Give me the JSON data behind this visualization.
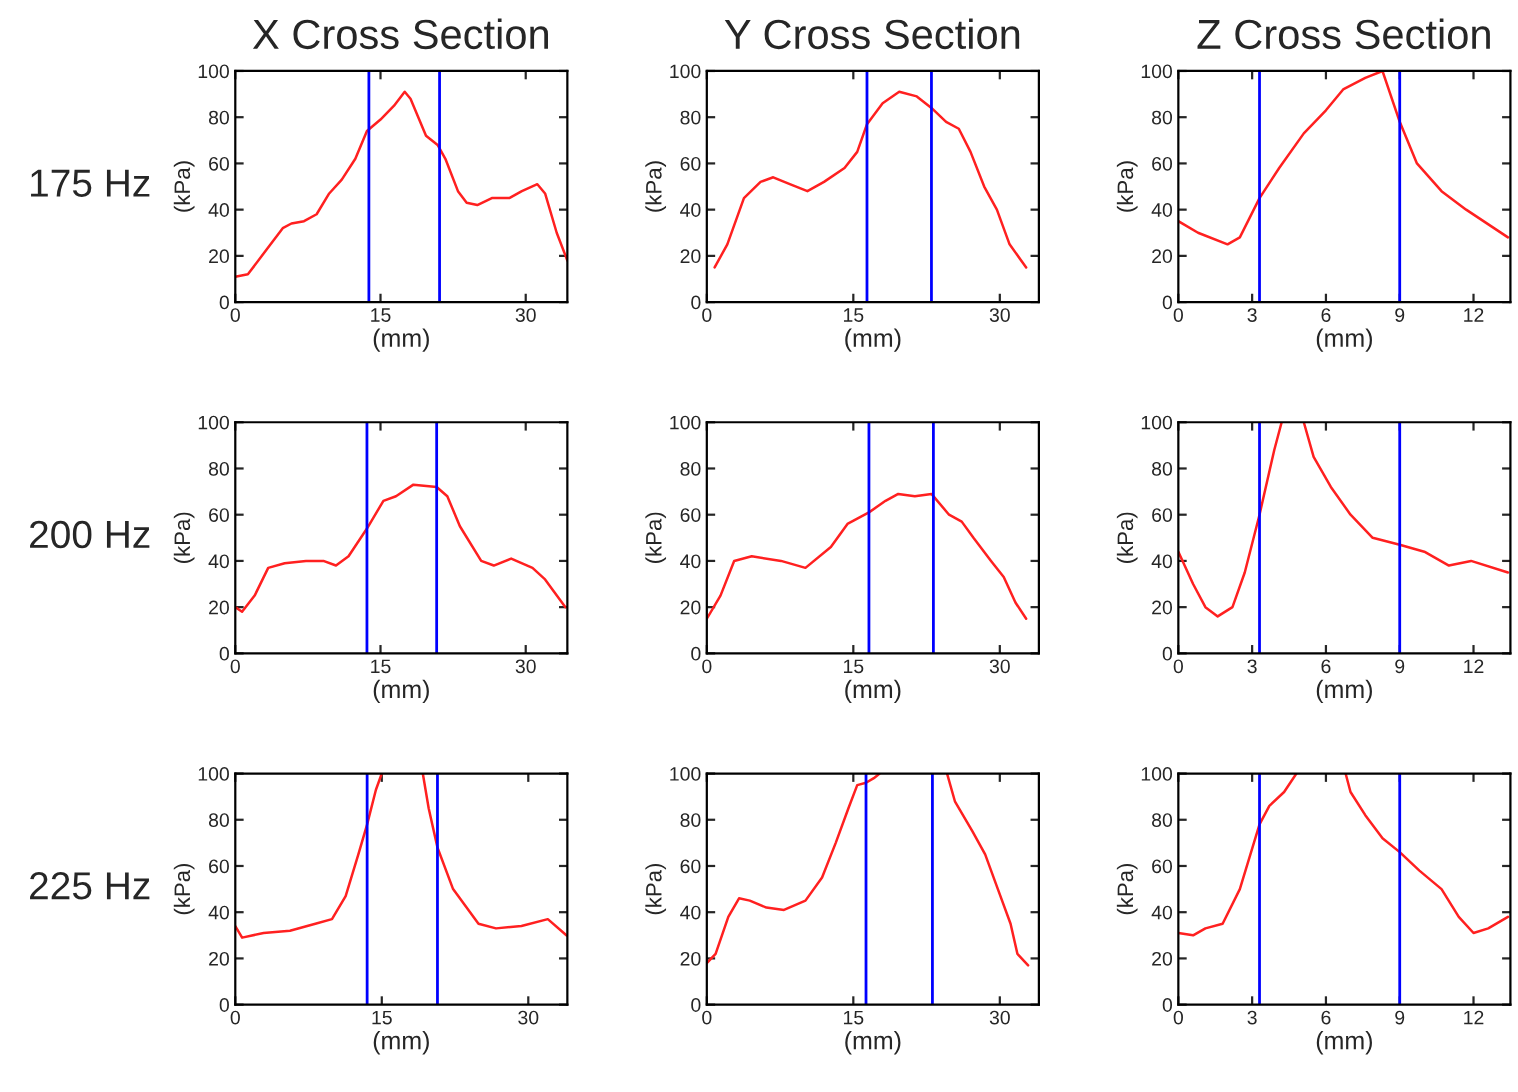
{
  "chart_data": [
    {
      "type": "line",
      "title": "X Cross Section",
      "annotations": [
        "175 Hz"
      ],
      "xlabel": "(mm)",
      "ylabel": "(kPa)",
      "xlim": [
        0,
        34.3
      ],
      "ylim": [
        0,
        100
      ],
      "xticks": [
        0,
        15,
        30
      ],
      "yticks": [
        0,
        20,
        40,
        60,
        80,
        100
      ],
      "grid": false,
      "series": [
        {
          "color": "#ff2020",
          "x": [
            0,
            1.3,
            3.1,
            4.9,
            5.8,
            7.1,
            8.4,
            9.7,
            11,
            12.4,
            13.6,
            15,
            16.4,
            17.5,
            18.1,
            19.7,
            20.9,
            21.7,
            23,
            23.9,
            25,
            26.5,
            28.3,
            29.6,
            31.2,
            32,
            33.2,
            34.3
          ],
          "values": [
            11,
            12,
            22,
            32,
            34,
            35,
            38,
            47,
            53,
            62,
            74,
            79,
            85,
            91,
            88,
            72,
            68,
            62,
            48,
            43,
            42,
            45,
            45,
            48,
            51,
            47,
            30,
            18
          ]
        }
      ],
      "ref_lines": [
        {
          "axis": "x",
          "value": 13.8,
          "color": "#0000ff"
        },
        {
          "axis": "x",
          "value": 21.1,
          "color": "#0000ff"
        }
      ]
    },
    {
      "type": "line",
      "title": "Y Cross Section",
      "xlabel": "(mm)",
      "ylabel": "(kPa)",
      "xlim": [
        0,
        34
      ],
      "ylim": [
        0,
        100
      ],
      "xticks": [
        0,
        15,
        30
      ],
      "yticks": [
        0,
        20,
        40,
        60,
        80,
        100
      ],
      "grid": false,
      "series": [
        {
          "color": "#ff2020",
          "x": [
            0.8,
            2.1,
            3.8,
            5.5,
            6.8,
            8.5,
            10.3,
            12,
            14.1,
            15.4,
            16.4,
            18,
            19.7,
            21.5,
            23,
            24.5,
            25.8,
            27,
            28.4,
            29.7,
            31,
            32.7
          ],
          "values": [
            15,
            25,
            45,
            52,
            54,
            51,
            48,
            52,
            58,
            65,
            77,
            86,
            91,
            89,
            84,
            78,
            75,
            65,
            50,
            40,
            25,
            15
          ]
        }
      ],
      "ref_lines": [
        {
          "axis": "x",
          "value": 16.4,
          "color": "#0000ff"
        },
        {
          "axis": "x",
          "value": 23.0,
          "color": "#0000ff"
        }
      ]
    },
    {
      "type": "line",
      "title": "Z Cross Section",
      "xlabel": "(mm)",
      "ylabel": "(kPa)",
      "xlim": [
        0,
        13.5
      ],
      "ylim": [
        0,
        100
      ],
      "xticks": [
        0,
        3,
        6,
        9,
        12
      ],
      "yticks": [
        0,
        20,
        40,
        60,
        80,
        100
      ],
      "grid": false,
      "series": [
        {
          "color": "#ff2020",
          "x": [
            0,
            0.8,
            2,
            2.5,
            3.3,
            4.1,
            5.1,
            6,
            6.7,
            7.6,
            8.3,
            9,
            9.7,
            10.7,
            11.7,
            13.4
          ],
          "values": [
            35,
            30,
            25,
            28,
            45,
            58,
            73,
            83,
            92,
            97,
            100,
            78,
            60,
            48,
            40,
            28
          ]
        }
      ],
      "ref_lines": [
        {
          "axis": "x",
          "value": 3.3,
          "color": "#0000ff"
        },
        {
          "axis": "x",
          "value": 9.0,
          "color": "#0000ff"
        }
      ]
    },
    {
      "type": "line",
      "annotations": [
        "200 Hz"
      ],
      "xlabel": "(mm)",
      "ylabel": "(kPa)",
      "xlim": [
        0,
        34.3
      ],
      "ylim": [
        0,
        100
      ],
      "xticks": [
        0,
        15,
        30
      ],
      "yticks": [
        0,
        20,
        40,
        60,
        80,
        100
      ],
      "grid": false,
      "series": [
        {
          "color": "#ff2020",
          "x": [
            0,
            0.7,
            2,
            3.4,
            5.1,
            7.3,
            9.1,
            10.4,
            11.7,
            13.6,
            15.3,
            16.6,
            18.4,
            20.8,
            21.9,
            23.2,
            25.4,
            26.7,
            28.5,
            30.7,
            32,
            34.1
          ],
          "values": [
            20,
            18,
            25,
            37,
            39,
            40,
            40,
            38,
            42,
            54,
            66,
            68,
            73,
            72,
            68,
            55,
            40,
            38,
            41,
            37,
            32,
            20
          ]
        }
      ],
      "ref_lines": [
        {
          "axis": "x",
          "value": 13.6,
          "color": "#0000ff"
        },
        {
          "axis": "x",
          "value": 20.8,
          "color": "#0000ff"
        }
      ]
    },
    {
      "type": "line",
      "xlabel": "(mm)",
      "ylabel": "(kPa)",
      "xlim": [
        0,
        34
      ],
      "ylim": [
        0,
        100
      ],
      "xticks": [
        0,
        15,
        30
      ],
      "yticks": [
        0,
        20,
        40,
        60,
        80,
        100
      ],
      "grid": false,
      "series": [
        {
          "color": "#ff2020",
          "x": [
            0,
            1.4,
            2.8,
            4.6,
            7.6,
            10.1,
            12.7,
            14.4,
            16.6,
            18.3,
            19.6,
            21.3,
            23,
            24.8,
            26.1,
            27.3,
            29.1,
            30.4,
            31.6,
            32.7
          ],
          "values": [
            15,
            25,
            40,
            42,
            40,
            37,
            46,
            56,
            61,
            66,
            69,
            68,
            69,
            60,
            57,
            50,
            40,
            33,
            22,
            15
          ]
        }
      ],
      "ref_lines": [
        {
          "axis": "x",
          "value": 16.6,
          "color": "#0000ff"
        },
        {
          "axis": "x",
          "value": 23.2,
          "color": "#0000ff"
        }
      ]
    },
    {
      "type": "line",
      "xlabel": "(mm)",
      "ylabel": "(kPa)",
      "xlim": [
        0,
        13.5
      ],
      "ylim": [
        0,
        100
      ],
      "xticks": [
        0,
        3,
        6,
        9,
        12
      ],
      "yticks": [
        0,
        20,
        40,
        60,
        80,
        100
      ],
      "grid": false,
      "series": [
        {
          "color": "#ff2020",
          "x": [
            0,
            0.6,
            1.1,
            1.6,
            2.2,
            2.7,
            3.3,
            3.9,
            4.2,
            4.6,
            5.1,
            5.5,
            6.2,
            7,
            7.9,
            9,
            10,
            11,
            11.9,
            13.4
          ],
          "values": [
            44,
            30,
            20,
            16,
            20,
            35,
            60,
            88,
            100,
            null,
            100,
            85,
            72,
            60,
            50,
            47,
            44,
            38,
            40,
            35
          ]
        }
      ],
      "ref_lines": [
        {
          "axis": "x",
          "value": 3.3,
          "color": "#0000ff"
        },
        {
          "axis": "x",
          "value": 9.0,
          "color": "#0000ff"
        }
      ]
    },
    {
      "type": "line",
      "annotations": [
        "225 Hz"
      ],
      "xlabel": "(mm)",
      "ylabel": "(kPa)",
      "xlim": [
        0,
        34
      ],
      "ylim": [
        0,
        100
      ],
      "xticks": [
        0,
        15,
        30
      ],
      "yticks": [
        0,
        20,
        40,
        60,
        80,
        100
      ],
      "grid": false,
      "series": [
        {
          "color": "#ff2020",
          "x": [
            0,
            0.7,
            2.9,
            5.6,
            8.2,
            9.9,
            11.3,
            12.6,
            13.5,
            14.4,
            15,
            17,
            19.2,
            19.8,
            20.7,
            22.3,
            24.9,
            26.7,
            29.3,
            32,
            33.9
          ],
          "values": [
            34,
            29,
            31,
            32,
            35,
            37,
            47,
            65,
            78,
            93,
            100,
            null,
            100,
            85,
            68,
            50,
            35,
            33,
            34,
            37,
            30
          ]
        }
      ],
      "ref_lines": [
        {
          "axis": "x",
          "value": 13.5,
          "color": "#0000ff"
        },
        {
          "axis": "x",
          "value": 20.7,
          "color": "#0000ff"
        }
      ]
    },
    {
      "type": "line",
      "xlabel": "(mm)",
      "ylabel": "(kPa)",
      "xlim": [
        0,
        34
      ],
      "ylim": [
        0,
        100
      ],
      "xticks": [
        0,
        15,
        30
      ],
      "yticks": [
        0,
        20,
        40,
        60,
        80,
        100
      ],
      "grid": false,
      "series": [
        {
          "color": "#ff2020",
          "x": [
            0,
            0.9,
            2.2,
            3.3,
            4.4,
            6.1,
            7.9,
            10.1,
            11.8,
            13.2,
            14.5,
            15.4,
            16.3,
            17.1,
            17.7,
            21,
            24.6,
            25.4,
            27.2,
            28.5,
            29.8,
            31.1,
            31.8,
            32.9
          ],
          "values": [
            18,
            22,
            38,
            46,
            45,
            42,
            41,
            45,
            55,
            70,
            85,
            95,
            96,
            98,
            100,
            null,
            100,
            88,
            75,
            65,
            50,
            35,
            22,
            17
          ]
        }
      ],
      "ref_lines": [
        {
          "axis": "x",
          "value": 16.3,
          "color": "#0000ff"
        },
        {
          "axis": "x",
          "value": 23.1,
          "color": "#0000ff"
        }
      ]
    },
    {
      "type": "line",
      "xlabel": "(mm)",
      "ylabel": "(kPa)",
      "xlim": [
        0,
        13.5
      ],
      "ylim": [
        0,
        100
      ],
      "xticks": [
        0,
        3,
        6,
        9,
        12
      ],
      "yticks": [
        0,
        20,
        40,
        60,
        80,
        100
      ],
      "grid": false,
      "series": [
        {
          "color": "#ff2020",
          "x": [
            0,
            0.6,
            1.1,
            1.8,
            2.5,
            3.3,
            3.7,
            4.3,
            4.8,
            5.8,
            6.8,
            7,
            7.6,
            8.3,
            9,
            9.8,
            10.7,
            11.4,
            12,
            12.6,
            13.4
          ],
          "values": [
            31,
            30,
            33,
            35,
            50,
            78,
            86,
            92,
            100,
            null,
            100,
            92,
            82,
            72,
            66,
            58,
            50,
            38,
            31,
            33,
            38
          ]
        }
      ],
      "ref_lines": [
        {
          "axis": "x",
          "value": 3.3,
          "color": "#0000ff"
        },
        {
          "axis": "x",
          "value": 9.0,
          "color": "#0000ff"
        }
      ]
    }
  ]
}
